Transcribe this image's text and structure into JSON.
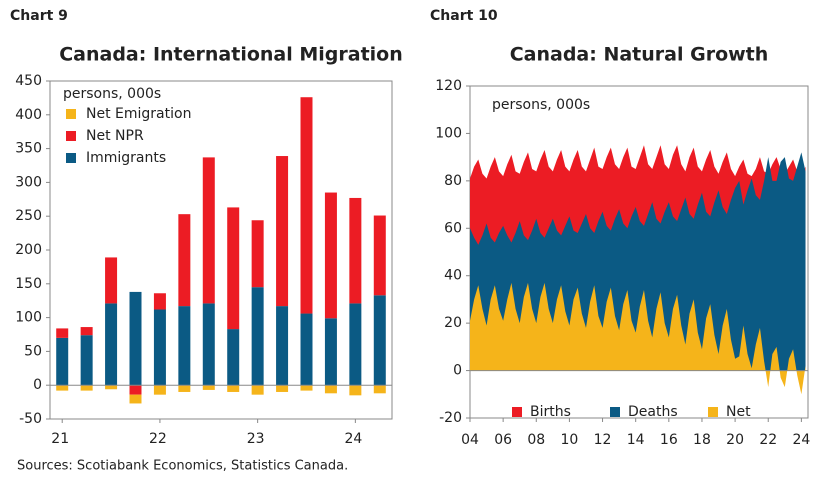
{
  "chart_data": [
    {
      "type": "bar",
      "stacked": true,
      "label": "Chart 9",
      "title": "Canada: International Migration",
      "unit_label": "persons, 000s",
      "source": "Sources: Scotiabank Economics, Statistics Canada.",
      "categories": [
        "21",
        null,
        null,
        null,
        "22",
        null,
        null,
        null,
        "23",
        null,
        null,
        null,
        "24",
        null
      ],
      "series": [
        {
          "name": "Net Emigration",
          "color": "#f5b41a",
          "values": [
            -8,
            -8,
            -6,
            -13,
            -14,
            -10,
            -7,
            -10,
            -14,
            -10,
            -8,
            -12,
            -15,
            -12
          ]
        },
        {
          "name": "Net NPR",
          "color": "#ec1c24",
          "values": [
            14,
            12,
            68,
            -14,
            24,
            136,
            216,
            180,
            99,
            222,
            320,
            186,
            156,
            118
          ]
        },
        {
          "name": "Immigrants",
          "color": "#0b5a84",
          "values": [
            70,
            74,
            121,
            138,
            112,
            117,
            121,
            83,
            145,
            117,
            106,
            99,
            121,
            133
          ]
        }
      ],
      "ylim": [
        -50,
        450
      ],
      "yticks": [
        -50,
        0,
        50,
        100,
        150,
        200,
        250,
        300,
        350,
        400,
        450
      ],
      "legend": "top-left"
    },
    {
      "type": "area",
      "label": "Chart 10",
      "title": "Canada: Natural Growth",
      "unit_label": "persons, 000s",
      "source": "Sources: Scotiabank Economics, Statistics Canada.",
      "x": [
        2004,
        2004.25,
        2004.5,
        2004.75,
        2005,
        2005.25,
        2005.5,
        2005.75,
        2006,
        2006.25,
        2006.5,
        2006.75,
        2007,
        2007.25,
        2007.5,
        2007.75,
        2008,
        2008.25,
        2008.5,
        2008.75,
        2009,
        2009.25,
        2009.5,
        2009.75,
        2010,
        2010.25,
        2010.5,
        2010.75,
        2011,
        2011.25,
        2011.5,
        2011.75,
        2012,
        2012.25,
        2012.5,
        2012.75,
        2013,
        2013.25,
        2013.5,
        2013.75,
        2014,
        2014.25,
        2014.5,
        2014.75,
        2015,
        2015.25,
        2015.5,
        2015.75,
        2016,
        2016.25,
        2016.5,
        2016.75,
        2017,
        2017.25,
        2017.5,
        2017.75,
        2018,
        2018.25,
        2018.5,
        2018.75,
        2019,
        2019.25,
        2019.5,
        2019.75,
        2020,
        2020.25,
        2020.5,
        2020.75,
        2021,
        2021.25,
        2021.5,
        2021.75,
        2022,
        2022.25,
        2022.5,
        2022.75,
        2023,
        2023.25,
        2023.5,
        2023.75,
        2024,
        2024.25
      ],
      "series": [
        {
          "name": "Births",
          "color": "#ec1c24",
          "values": [
            81,
            86,
            89,
            83,
            81,
            86,
            90,
            84,
            82,
            87,
            91,
            84,
            83,
            88,
            92,
            85,
            84,
            89,
            93,
            86,
            84,
            89,
            93,
            86,
            84,
            89,
            93,
            86,
            84,
            89,
            94,
            86,
            85,
            90,
            94,
            87,
            85,
            90,
            94,
            86,
            85,
            90,
            95,
            87,
            85,
            90,
            95,
            87,
            85,
            91,
            95,
            87,
            84,
            90,
            94,
            86,
            84,
            89,
            93,
            86,
            83,
            88,
            92,
            85,
            82,
            86,
            89,
            83,
            82,
            85,
            90,
            84,
            83,
            87,
            90,
            85,
            83,
            86,
            89,
            84,
            82,
            86
          ]
        },
        {
          "name": "Deaths",
          "color": "#0b5a84",
          "values": [
            60,
            56,
            53,
            57,
            62,
            56,
            54,
            58,
            61,
            57,
            54,
            58,
            63,
            57,
            55,
            59,
            64,
            58,
            56,
            60,
            64,
            59,
            57,
            61,
            65,
            59,
            58,
            62,
            66,
            60,
            58,
            63,
            67,
            61,
            59,
            64,
            68,
            62,
            60,
            65,
            69,
            63,
            61,
            66,
            71,
            64,
            62,
            67,
            71,
            65,
            63,
            68,
            73,
            66,
            64,
            70,
            75,
            67,
            65,
            71,
            76,
            69,
            66,
            72,
            77,
            80,
            70,
            76,
            81,
            74,
            72,
            80,
            90,
            80,
            80,
            88,
            90,
            81,
            80,
            86,
            92,
            84
          ]
        },
        {
          "name": "Net",
          "color": "#f5b41a",
          "values": [
            21,
            30,
            36,
            26,
            19,
            30,
            36,
            26,
            21,
            30,
            37,
            26,
            20,
            31,
            37,
            26,
            20,
            31,
            37,
            26,
            20,
            30,
            36,
            25,
            19,
            30,
            35,
            24,
            18,
            29,
            36,
            23,
            18,
            29,
            35,
            23,
            17,
            28,
            34,
            21,
            16,
            27,
            34,
            21,
            14,
            26,
            33,
            20,
            14,
            26,
            32,
            19,
            11,
            24,
            30,
            16,
            9,
            22,
            28,
            15,
            7,
            19,
            26,
            13,
            5,
            6,
            19,
            7,
            1,
            11,
            18,
            4,
            -7,
            7,
            10,
            -3,
            -7,
            5,
            9,
            -2,
            -10,
            2
          ]
        }
      ],
      "xlim": [
        2004,
        2024.4
      ],
      "xticks": [
        {
          "value": 2004,
          "label": "04"
        },
        {
          "value": 2006,
          "label": "06"
        },
        {
          "value": 2008,
          "label": "08"
        },
        {
          "value": 2010,
          "label": "10"
        },
        {
          "value": 2012,
          "label": "12"
        },
        {
          "value": 2014,
          "label": "14"
        },
        {
          "value": 2016,
          "label": "16"
        },
        {
          "value": 2018,
          "label": "18"
        },
        {
          "value": 2020,
          "label": "20"
        },
        {
          "value": 2022,
          "label": "22"
        },
        {
          "value": 2024,
          "label": "24"
        }
      ],
      "ylim": [
        -20,
        120
      ],
      "yticks": [
        -20,
        0,
        20,
        40,
        60,
        80,
        100,
        120
      ],
      "legend": "bottom"
    }
  ]
}
